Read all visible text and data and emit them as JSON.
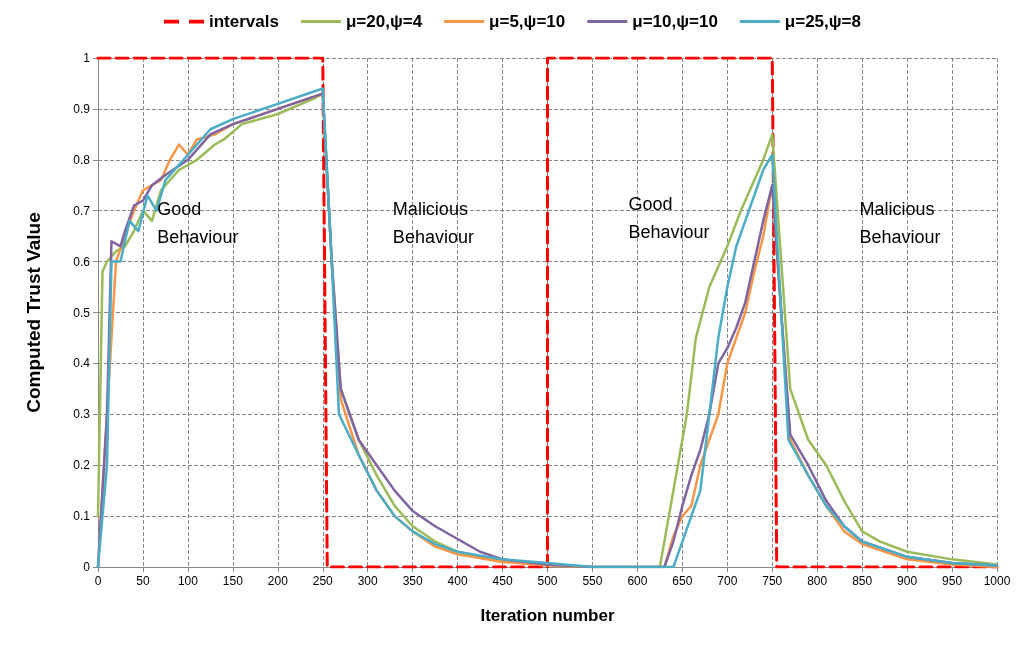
{
  "chart_data": {
    "type": "line",
    "xlabel": "Iteration number",
    "ylabel": "Computed Trust Value",
    "xlim": [
      0,
      1000
    ],
    "xticks": [
      0,
      50,
      100,
      150,
      200,
      250,
      300,
      350,
      400,
      450,
      500,
      550,
      600,
      650,
      700,
      750,
      800,
      850,
      900,
      950,
      1000
    ],
    "ylim": [
      0,
      1
    ],
    "yticks": [
      0,
      0.1,
      0.2,
      0.3,
      0.4,
      0.5,
      0.6,
      0.7,
      0.8,
      0.9,
      1
    ],
    "grid": true,
    "legend": "top",
    "marker": "none",
    "line_style": "solid",
    "annotations": [
      "Good\nBehaviour",
      "Malicious\nBehaviour",
      "Good\nBehaviour",
      "Malicious\nBehaviour"
    ],
    "series": [
      {
        "name": "intervals",
        "color": "#ff0000",
        "line_style": "dashed",
        "x": [
          0,
          250,
          255,
          500,
          500,
          750,
          755,
          1000
        ],
        "values": [
          1,
          1,
          0,
          0,
          1,
          1,
          0,
          0
        ]
      },
      {
        "name": "μ=20,ψ=4",
        "color": "#9bbb59",
        "x": [
          0,
          5,
          10,
          20,
          30,
          40,
          50,
          60,
          70,
          90,
          110,
          130,
          140,
          160,
          200,
          240,
          250,
          260,
          270,
          290,
          310,
          330,
          350,
          375,
          400,
          425,
          460,
          500,
          550,
          600,
          625,
          635,
          645,
          655,
          665,
          680,
          700,
          715,
          730,
          740,
          750,
          760,
          770,
          790,
          810,
          830,
          850,
          870,
          900,
          950,
          1000
        ],
        "values": [
          0.1,
          0.58,
          0.6,
          0.62,
          0.63,
          0.66,
          0.7,
          0.68,
          0.74,
          0.78,
          0.8,
          0.83,
          0.84,
          0.87,
          0.89,
          0.92,
          0.93,
          0.6,
          0.35,
          0.25,
          0.18,
          0.12,
          0.08,
          0.05,
          0.03,
          0.02,
          0.01,
          0.005,
          0,
          0,
          0,
          0.1,
          0.2,
          0.3,
          0.45,
          0.55,
          0.63,
          0.7,
          0.76,
          0.8,
          0.85,
          0.6,
          0.35,
          0.25,
          0.2,
          0.13,
          0.07,
          0.05,
          0.03,
          0.015,
          0.005
        ]
      },
      {
        "name": "μ=5,ψ=10",
        "color": "#f79646",
        "x": [
          0,
          10,
          20,
          30,
          40,
          50,
          60,
          70,
          80,
          90,
          100,
          110,
          130,
          150,
          200,
          250,
          260,
          270,
          290,
          310,
          330,
          350,
          375,
          400,
          450,
          500,
          550,
          630,
          640,
          650,
          660,
          670,
          690,
          700,
          710,
          720,
          730,
          740,
          750,
          760,
          770,
          790,
          810,
          830,
          850,
          900,
          950,
          1000
        ],
        "values": [
          0,
          0.3,
          0.6,
          0.65,
          0.7,
          0.74,
          0.75,
          0.76,
          0.8,
          0.83,
          0.81,
          0.84,
          0.85,
          0.87,
          0.9,
          0.93,
          0.6,
          0.33,
          0.22,
          0.15,
          0.1,
          0.07,
          0.04,
          0.025,
          0.01,
          0.003,
          0,
          0,
          0.06,
          0.1,
          0.12,
          0.2,
          0.3,
          0.4,
          0.45,
          0.5,
          0.58,
          0.65,
          0.75,
          0.5,
          0.25,
          0.18,
          0.12,
          0.07,
          0.045,
          0.015,
          0.005,
          0
        ]
      },
      {
        "name": "μ=10,ψ=10",
        "color": "#8064a2",
        "x": [
          0,
          10,
          15,
          25,
          30,
          40,
          50,
          60,
          75,
          100,
          125,
          150,
          200,
          250,
          260,
          270,
          290,
          310,
          330,
          350,
          375,
          400,
          425,
          450,
          500,
          550,
          630,
          640,
          650,
          660,
          670,
          680,
          690,
          700,
          710,
          720,
          730,
          740,
          750,
          760,
          770,
          790,
          810,
          830,
          850,
          900,
          950,
          1000
        ],
        "values": [
          0,
          0.3,
          0.64,
          0.63,
          0.66,
          0.71,
          0.72,
          0.75,
          0.77,
          0.8,
          0.85,
          0.87,
          0.9,
          0.93,
          0.6,
          0.35,
          0.25,
          0.2,
          0.15,
          0.11,
          0.08,
          0.055,
          0.03,
          0.015,
          0.005,
          0,
          0,
          0.05,
          0.12,
          0.18,
          0.23,
          0.3,
          0.4,
          0.43,
          0.47,
          0.52,
          0.6,
          0.68,
          0.75,
          0.5,
          0.26,
          0.2,
          0.13,
          0.08,
          0.05,
          0.02,
          0.008,
          0.003
        ]
      },
      {
        "name": "μ=25,ψ=8",
        "color": "#4bacc6",
        "x": [
          0,
          10,
          15,
          25,
          35,
          45,
          55,
          65,
          75,
          100,
          125,
          150,
          200,
          250,
          260,
          268,
          290,
          310,
          330,
          350,
          375,
          400,
          450,
          500,
          550,
          640,
          650,
          660,
          670,
          680,
          690,
          700,
          710,
          720,
          730,
          740,
          750,
          760,
          768,
          790,
          810,
          830,
          850,
          900,
          950,
          1000
        ],
        "values": [
          0,
          0.2,
          0.6,
          0.6,
          0.68,
          0.66,
          0.73,
          0.7,
          0.76,
          0.81,
          0.86,
          0.88,
          0.91,
          0.94,
          0.6,
          0.3,
          0.22,
          0.15,
          0.1,
          0.07,
          0.045,
          0.03,
          0.015,
          0.008,
          0,
          0,
          0.05,
          0.1,
          0.15,
          0.3,
          0.45,
          0.55,
          0.63,
          0.68,
          0.73,
          0.78,
          0.81,
          0.5,
          0.25,
          0.18,
          0.12,
          0.08,
          0.05,
          0.02,
          0.008,
          0.003
        ]
      }
    ]
  }
}
